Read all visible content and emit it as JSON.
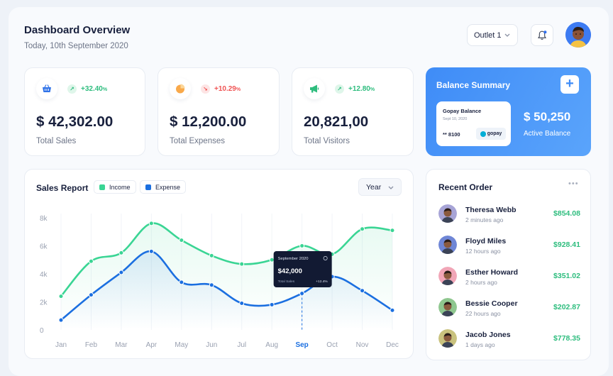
{
  "header": {
    "title": "Dashboard Overview",
    "date": "Today, 10th September 2020",
    "outlet_label": "Outlet 1"
  },
  "stats": [
    {
      "icon": "basket-icon",
      "trend": "+32.40",
      "trend_unit": "%",
      "trend_dir": "up",
      "value": "$ 42,302.00",
      "label": "Total Sales"
    },
    {
      "icon": "pie-chart-icon",
      "trend": "+10.29",
      "trend_unit": "%",
      "trend_dir": "down",
      "value": "$ 12,200.00",
      "label": "Total Expenses"
    },
    {
      "icon": "megaphone-icon",
      "trend": "+12.80",
      "trend_unit": "%",
      "trend_dir": "up",
      "value": "20,821,00",
      "label": "Total Visitors"
    }
  ],
  "balance": {
    "title": "Balance Summary",
    "card_name": "Gopay Balance",
    "card_date": "Sept 10, 2020",
    "card_number": "** 8100",
    "card_brand": "gopay",
    "amount": "$ 50,250",
    "amount_label": "Active Balance"
  },
  "sales_report": {
    "title": "Sales Report",
    "legend_income": "Income",
    "legend_expense": "Expense",
    "period": "Year",
    "tooltip": {
      "month": "September 2020",
      "value": "$42,000",
      "label": "Total Sales",
      "change": "+12.4%"
    }
  },
  "chart_data": {
    "type": "line",
    "categories": [
      "Jan",
      "Feb",
      "Mar",
      "Apr",
      "May",
      "Jun",
      "Jul",
      "Aug",
      "Sep",
      "Oct",
      "Nov",
      "Dec"
    ],
    "highlighted_category": "Sep",
    "y_ticks": [
      "0",
      "2k",
      "4k",
      "6k",
      "8k"
    ],
    "ylim": [
      0,
      8000
    ],
    "series": [
      {
        "name": "Income",
        "color": "#3ad594",
        "values": [
          [
            0,
            2400
          ],
          [
            1,
            4900
          ],
          [
            2,
            5500
          ],
          [
            3,
            7600
          ],
          [
            4,
            6400
          ],
          [
            5,
            5300
          ],
          [
            6,
            4700
          ],
          [
            7,
            5000
          ],
          [
            8,
            6000
          ],
          [
            9,
            5400
          ],
          [
            10,
            7200
          ],
          [
            11,
            7100
          ]
        ]
      },
      {
        "name": "Expense",
        "color": "#1b6fe0",
        "values": [
          [
            0,
            700
          ],
          [
            1,
            2500
          ],
          [
            2,
            4100
          ],
          [
            3,
            5600
          ],
          [
            4,
            3400
          ],
          [
            5,
            3200
          ],
          [
            6,
            1900
          ],
          [
            7,
            1800
          ],
          [
            8,
            2600
          ],
          [
            9,
            3800
          ],
          [
            10,
            2800
          ],
          [
            11,
            1400
          ]
        ]
      }
    ]
  },
  "recent_orders": {
    "title": "Recent Order",
    "items": [
      {
        "name": "Theresa Webb",
        "time": "2 minutes ago",
        "amount": "$854.08",
        "avatar_color": "#a7a4d6"
      },
      {
        "name": "Floyd Miles",
        "time": "12 hours ago",
        "amount": "$928.41",
        "avatar_color": "#6f86d6"
      },
      {
        "name": "Esther Howard",
        "time": "2 hours ago",
        "amount": "$351.02",
        "avatar_color": "#f1a6b7"
      },
      {
        "name": "Bessie Cooper",
        "time": "22 hours ago",
        "amount": "$202.87",
        "avatar_color": "#8fc78f"
      },
      {
        "name": "Jacob Jones",
        "time": "1 days ago",
        "amount": "$778.35",
        "avatar_color": "#c9c27e"
      }
    ]
  }
}
